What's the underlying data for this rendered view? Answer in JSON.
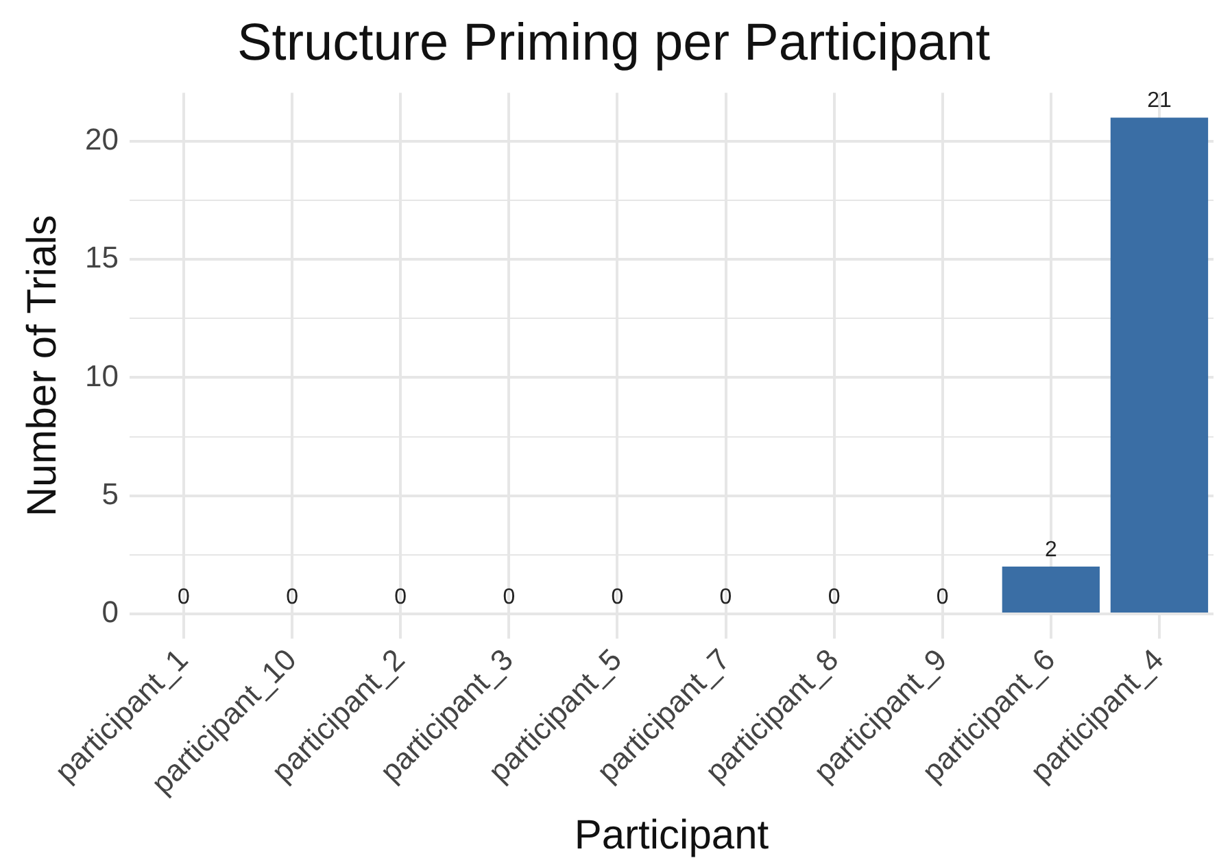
{
  "chart_data": {
    "type": "bar",
    "title": "Structure Priming per Participant",
    "xlabel": "Participant",
    "ylabel": "Number of Trials",
    "categories": [
      "participant_1",
      "participant_10",
      "participant_2",
      "participant_3",
      "participant_5",
      "participant_7",
      "participant_8",
      "participant_9",
      "participant_6",
      "participant_4"
    ],
    "values": [
      0,
      0,
      0,
      0,
      0,
      0,
      0,
      0,
      2,
      21
    ],
    "color": "#3a6ea5",
    "ylim": [
      -1.05,
      22.05
    ],
    "yticks": [
      0,
      {
        "value": 2.5,
        "label": null
      },
      5,
      {
        "value": 7.5,
        "label": null
      },
      10,
      {
        "value": 12.5,
        "label": null
      },
      15,
      {
        "value": 17.5,
        "label": null
      },
      20
    ],
    "grid": true,
    "data_labels": true,
    "legend": false
  }
}
